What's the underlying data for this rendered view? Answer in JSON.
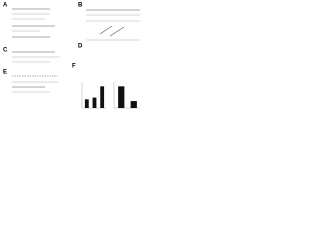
{
  "panels": {
    "labels": [
      "A",
      "B",
      "C",
      "D",
      "E",
      "F"
    ]
  },
  "bars": {
    "left": {
      "values": [
        10,
        12,
        25
      ],
      "ylim": [
        0,
        30
      ]
    },
    "right": {
      "values": [
        25,
        8
      ],
      "ylim": [
        0,
        30
      ]
    },
    "color": "#111111"
  }
}
